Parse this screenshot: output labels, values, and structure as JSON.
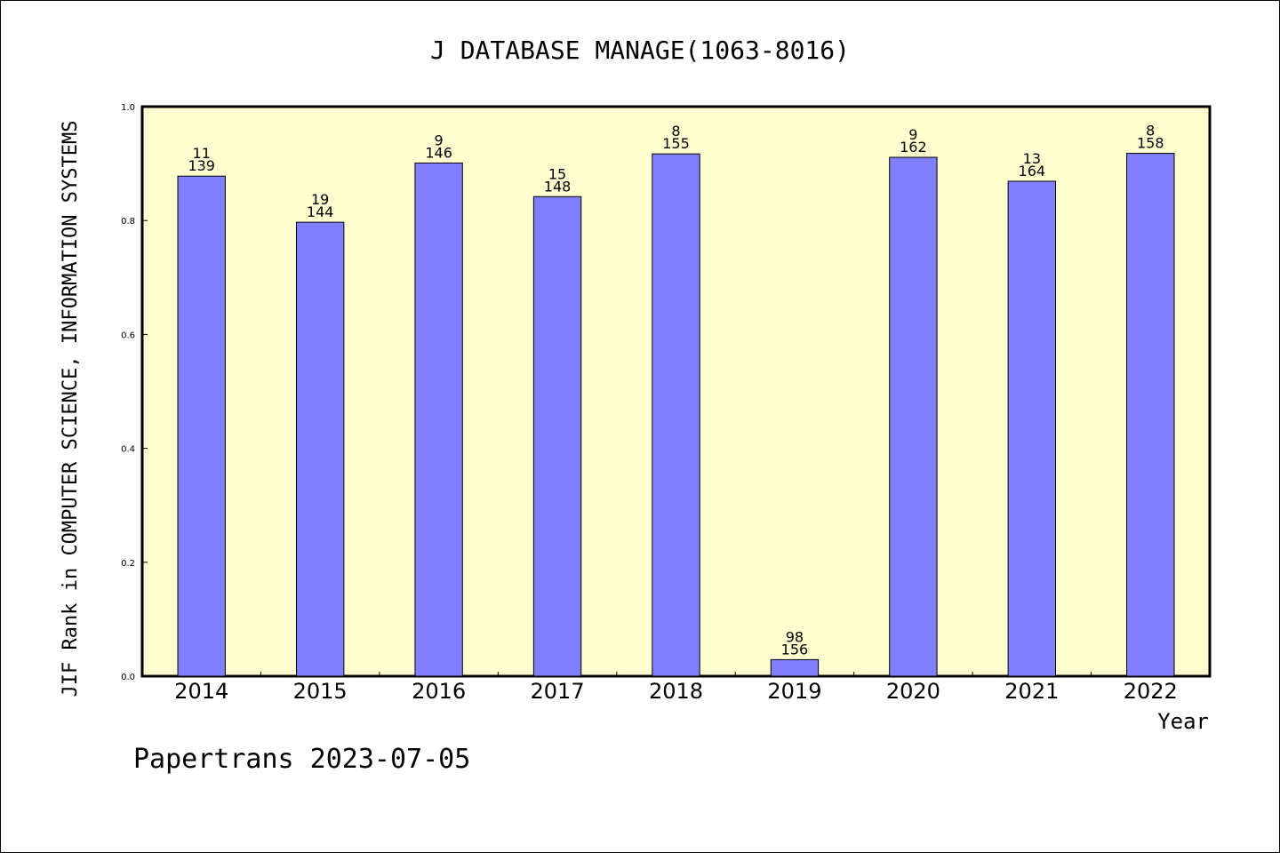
{
  "chart_data": {
    "type": "bar",
    "title": "J DATABASE MANAGE(1063-8016)",
    "xlabel": "Year",
    "ylabel": "JIF Rank in COMPUTER SCIENCE, INFORMATION SYSTEMS",
    "ylim": [
      0,
      1.0
    ],
    "yticks": [
      "0.0",
      "0.2",
      "0.4",
      "0.6",
      "0.8",
      "1.0"
    ],
    "categories": [
      "2014",
      "2015",
      "2016",
      "2017",
      "2018",
      "2019",
      "2020",
      "2021",
      "2022"
    ],
    "values": [
      0.878,
      0.797,
      0.901,
      0.842,
      0.917,
      0.029,
      0.911,
      0.869,
      0.918
    ],
    "rank": [
      "11",
      "19",
      "9",
      "15",
      "8",
      "98",
      "9",
      "13",
      "8"
    ],
    "total": [
      "139",
      "144",
      "146",
      "148",
      "155",
      "156",
      "162",
      "164",
      "158"
    ],
    "grid": false,
    "legend": "none",
    "colors": {
      "plot_bg": "#ffffd0",
      "bar_fill": "#8080ff",
      "bar_stroke": "#000000"
    }
  },
  "footer": {
    "text": "Papertrans 2023-07-05"
  }
}
